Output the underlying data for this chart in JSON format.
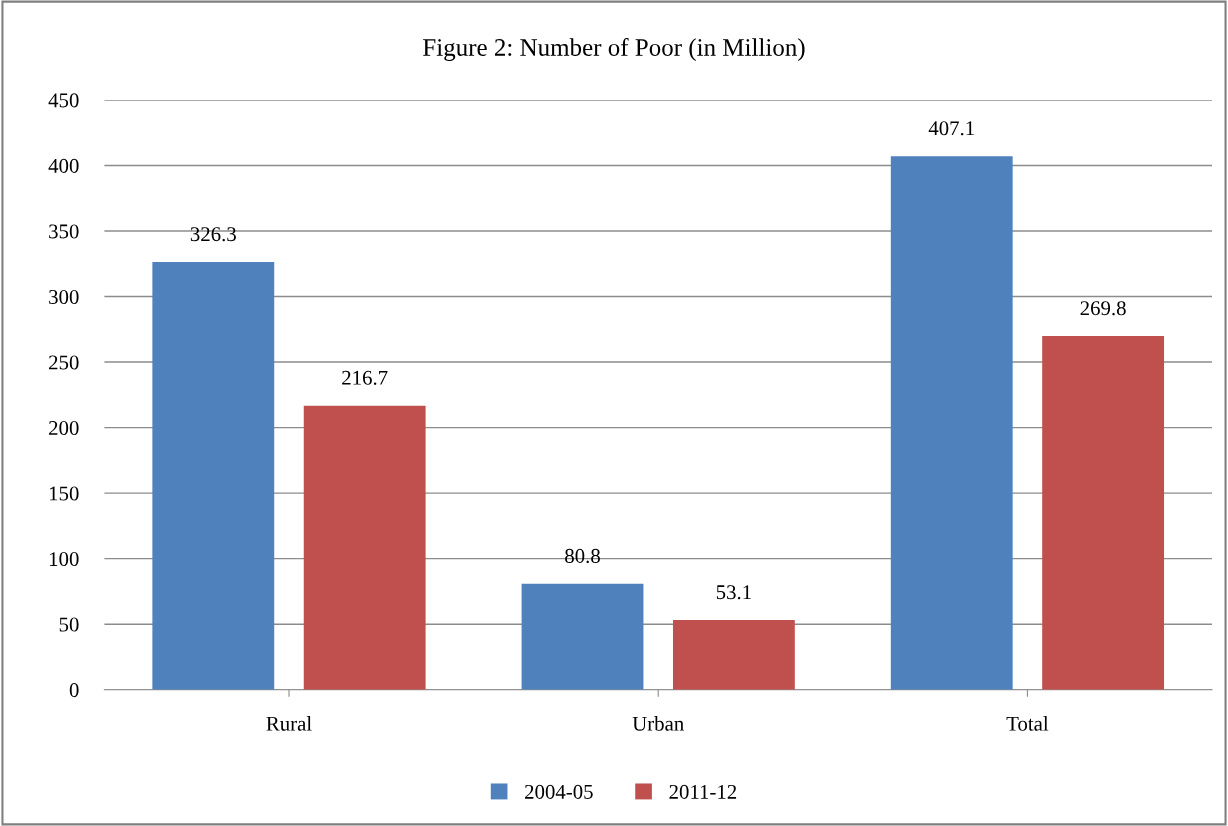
{
  "chart_data": {
    "type": "bar",
    "title": "Figure 2: Number of Poor (in Million)",
    "categories": [
      "Rural",
      "Urban",
      "Total"
    ],
    "series": [
      {
        "name": "2004-05",
        "color": "#4f81bd",
        "values": [
          326.3,
          80.8,
          407.1
        ]
      },
      {
        "name": "2011-12",
        "color": "#c0504d",
        "values": [
          216.7,
          53.1,
          269.8
        ]
      }
    ],
    "ylim": [
      0,
      450
    ],
    "yticks": [
      0,
      50,
      100,
      150,
      200,
      250,
      300,
      350,
      400,
      450
    ],
    "grid": "y",
    "legend": "bottom",
    "data_labels": true
  }
}
